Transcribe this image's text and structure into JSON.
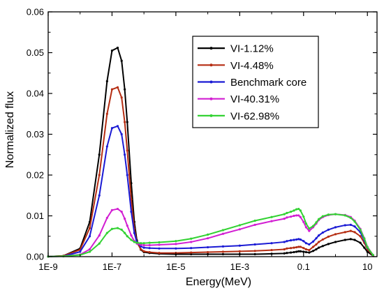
{
  "chart_data": {
    "type": "line",
    "title": "",
    "xlabel": "Energy(MeV)",
    "ylabel": "Normalized flux",
    "x_scale": "log",
    "xlim": [
      1e-09,
      20
    ],
    "ylim": [
      0,
      0.06
    ],
    "x_ticks": [
      {
        "value": 1e-09,
        "label": "1E-9"
      },
      {
        "value": 1e-07,
        "label": "1E-7"
      },
      {
        "value": 1e-05,
        "label": "1E-5"
      },
      {
        "value": 0.001,
        "label": "1E-3"
      },
      {
        "value": 0.1,
        "label": "0.1"
      },
      {
        "value": 10,
        "label": "10"
      }
    ],
    "y_ticks": [
      {
        "value": 0,
        "label": "0.00"
      },
      {
        "value": 0.01,
        "label": "0.01"
      },
      {
        "value": 0.02,
        "label": "0.02"
      },
      {
        "value": 0.03,
        "label": "0.03"
      },
      {
        "value": 0.04,
        "label": "0.04"
      },
      {
        "value": 0.05,
        "label": "0.05"
      },
      {
        "value": 0.06,
        "label": "0.06"
      }
    ],
    "grid": false,
    "legend_position": "top-right",
    "series": [
      {
        "name": "VI-1.12%",
        "color": "#000000",
        "x": [
          1e-09,
          3e-09,
          1e-08,
          2e-08,
          4e-08,
          7e-08,
          1e-07,
          1.5e-07,
          2e-07,
          2.5e-07,
          3e-07,
          4e-07,
          5e-07,
          6e-07,
          8e-07,
          1e-06,
          1.5e-06,
          3e-06,
          1e-05,
          3e-05,
          0.0001,
          0.0003,
          0.001,
          0.003,
          0.01,
          0.025,
          0.03,
          0.04,
          0.05,
          0.06,
          0.07,
          0.08,
          0.1,
          0.12,
          0.15,
          0.2,
          0.25,
          0.3,
          0.4,
          0.6,
          1,
          2,
          3,
          4,
          6,
          8,
          10,
          15
        ],
        "y": [
          2e-05,
          0.0002,
          0.002,
          0.0085,
          0.025,
          0.043,
          0.0505,
          0.0512,
          0.048,
          0.041,
          0.033,
          0.018,
          0.0085,
          0.004,
          0.0017,
          0.0011,
          0.0009,
          0.0007,
          0.0006,
          0.0006,
          0.0006,
          0.0006,
          0.0006,
          0.0006,
          0.0007,
          0.0008,
          0.0009,
          0.001,
          0.0011,
          0.0012,
          0.0013,
          0.0013,
          0.0012,
          0.0011,
          0.001,
          0.0014,
          0.0018,
          0.0022,
          0.0026,
          0.0031,
          0.0036,
          0.0041,
          0.0043,
          0.0041,
          0.0034,
          0.0022,
          0.0012,
          0.0002
        ]
      },
      {
        "name": "VI-4.48%",
        "color": "#b52d12",
        "x": [
          1e-09,
          3e-09,
          1e-08,
          2e-08,
          4e-08,
          7e-08,
          1e-07,
          1.5e-07,
          2e-07,
          2.5e-07,
          3e-07,
          4e-07,
          5e-07,
          6e-07,
          8e-07,
          1e-06,
          1.5e-06,
          3e-06,
          1e-05,
          3e-05,
          0.0001,
          0.0003,
          0.001,
          0.003,
          0.01,
          0.025,
          0.03,
          0.04,
          0.05,
          0.06,
          0.07,
          0.08,
          0.1,
          0.12,
          0.15,
          0.2,
          0.25,
          0.3,
          0.4,
          0.6,
          1,
          2,
          3,
          4,
          6,
          8,
          10,
          15
        ],
        "y": [
          2e-05,
          0.0002,
          0.0017,
          0.007,
          0.02,
          0.035,
          0.041,
          0.0415,
          0.039,
          0.033,
          0.026,
          0.014,
          0.0068,
          0.0035,
          0.0018,
          0.0013,
          0.0011,
          0.0009,
          0.0009,
          0.001,
          0.0011,
          0.0012,
          0.0013,
          0.0014,
          0.0016,
          0.0018,
          0.002,
          0.0021,
          0.0022,
          0.0023,
          0.0024,
          0.0024,
          0.0021,
          0.0018,
          0.0016,
          0.0024,
          0.003,
          0.0036,
          0.0042,
          0.0049,
          0.0055,
          0.006,
          0.0063,
          0.006,
          0.005,
          0.0034,
          0.0018,
          0.0003
        ]
      },
      {
        "name": "Benchmark core",
        "color": "#1a1ad4",
        "x": [
          1e-09,
          3e-09,
          1e-08,
          2e-08,
          4e-08,
          7e-08,
          1e-07,
          1.5e-07,
          2e-07,
          2.5e-07,
          3e-07,
          4e-07,
          5e-07,
          6e-07,
          8e-07,
          1e-06,
          1.5e-06,
          3e-06,
          1e-05,
          3e-05,
          0.0001,
          0.0003,
          0.001,
          0.003,
          0.01,
          0.025,
          0.03,
          0.04,
          0.05,
          0.06,
          0.07,
          0.08,
          0.1,
          0.12,
          0.15,
          0.2,
          0.25,
          0.3,
          0.4,
          0.6,
          1,
          2,
          3,
          4,
          6,
          8,
          10,
          15
        ],
        "y": [
          2e-05,
          0.0001,
          0.0012,
          0.005,
          0.015,
          0.027,
          0.0315,
          0.032,
          0.03,
          0.025,
          0.02,
          0.011,
          0.0058,
          0.0035,
          0.0025,
          0.0022,
          0.0021,
          0.002,
          0.002,
          0.0021,
          0.0023,
          0.0025,
          0.0027,
          0.003,
          0.0033,
          0.0036,
          0.0038,
          0.004,
          0.0041,
          0.0042,
          0.0043,
          0.0042,
          0.0038,
          0.0033,
          0.003,
          0.0037,
          0.0045,
          0.0052,
          0.0059,
          0.0066,
          0.0072,
          0.0077,
          0.0078,
          0.0074,
          0.006,
          0.004,
          0.0022,
          0.0004
        ]
      },
      {
        "name": "VI-40.31%",
        "color": "#d21ed2",
        "x": [
          1e-09,
          3e-09,
          1e-08,
          2e-08,
          4e-08,
          7e-08,
          1e-07,
          1.5e-07,
          2e-07,
          2.5e-07,
          3e-07,
          4e-07,
          5e-07,
          6e-07,
          8e-07,
          1e-06,
          1.5e-06,
          3e-06,
          1e-05,
          3e-05,
          0.0001,
          0.0003,
          0.001,
          0.003,
          0.01,
          0.025,
          0.03,
          0.04,
          0.05,
          0.06,
          0.07,
          0.08,
          0.1,
          0.12,
          0.15,
          0.2,
          0.25,
          0.3,
          0.4,
          0.6,
          1,
          2,
          3,
          4,
          6,
          8,
          10,
          15
        ],
        "y": [
          2e-05,
          0.0001,
          0.0005,
          0.0018,
          0.0052,
          0.0095,
          0.0114,
          0.0117,
          0.011,
          0.0093,
          0.0076,
          0.0052,
          0.0038,
          0.0032,
          0.0029,
          0.0028,
          0.0028,
          0.0029,
          0.0031,
          0.0036,
          0.0045,
          0.0056,
          0.0067,
          0.0078,
          0.0087,
          0.0093,
          0.0096,
          0.0098,
          0.01,
          0.0101,
          0.0101,
          0.0097,
          0.0085,
          0.0072,
          0.0063,
          0.0072,
          0.0081,
          0.009,
          0.0097,
          0.0102,
          0.0104,
          0.0102,
          0.0097,
          0.0088,
          0.0068,
          0.0045,
          0.0024,
          0.0004
        ]
      },
      {
        "name": "VI-62.98%",
        "color": "#32d232",
        "x": [
          1e-09,
          3e-09,
          1e-08,
          2e-08,
          4e-08,
          7e-08,
          1e-07,
          1.5e-07,
          2e-07,
          2.5e-07,
          3e-07,
          4e-07,
          5e-07,
          6e-07,
          8e-07,
          1e-06,
          1.5e-06,
          3e-06,
          1e-05,
          3e-05,
          0.0001,
          0.0003,
          0.001,
          0.003,
          0.01,
          0.025,
          0.03,
          0.04,
          0.05,
          0.06,
          0.07,
          0.08,
          0.1,
          0.12,
          0.15,
          0.2,
          0.25,
          0.3,
          0.4,
          0.6,
          1,
          2,
          3,
          4,
          6,
          8,
          10,
          15
        ],
        "y": [
          2e-05,
          0.0001,
          0.0004,
          0.0012,
          0.0032,
          0.0058,
          0.0068,
          0.007,
          0.0066,
          0.0058,
          0.005,
          0.0041,
          0.0036,
          0.0034,
          0.0033,
          0.0033,
          0.0034,
          0.0035,
          0.0038,
          0.0044,
          0.0054,
          0.0065,
          0.0077,
          0.0088,
          0.0097,
          0.0104,
          0.0107,
          0.011,
          0.0113,
          0.0116,
          0.0117,
          0.0113,
          0.0098,
          0.0081,
          0.0069,
          0.0075,
          0.0084,
          0.0092,
          0.0099,
          0.0103,
          0.0104,
          0.0101,
          0.0095,
          0.0086,
          0.0066,
          0.0044,
          0.0023,
          0.0004
        ]
      }
    ]
  }
}
